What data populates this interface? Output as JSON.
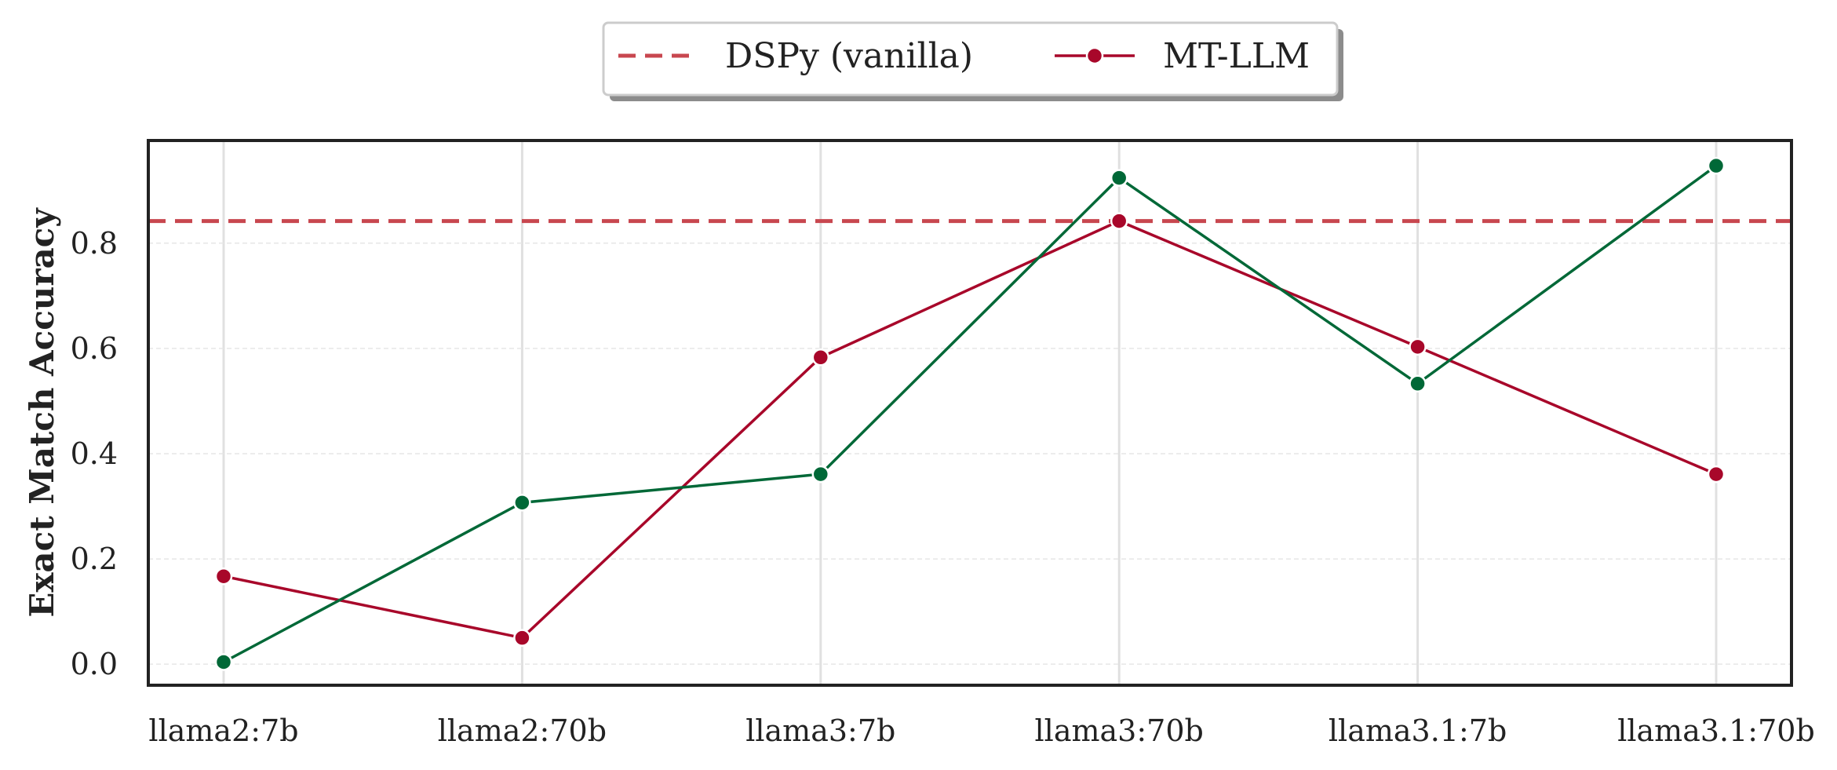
{
  "chart_data": {
    "type": "line",
    "categories": [
      "llama2:7b",
      "llama2:70b",
      "llama3:7b",
      "llama3:70b",
      "llama3.1:7b",
      "llama3.1:70b"
    ],
    "series": [
      {
        "name": "MT-LLM",
        "values": [
          0.167,
          0.05,
          0.583,
          0.842,
          0.603,
          0.361
        ],
        "color": "#a8072a",
        "marker": "circle"
      },
      {
        "name": "",
        "values": [
          0.004,
          0.307,
          0.361,
          0.924,
          0.533,
          0.947
        ],
        "color": "#006837",
        "marker": "circle"
      }
    ],
    "reference_lines": [
      {
        "name": "DSPy (vanilla)",
        "y": 0.842,
        "color": "#c8474f",
        "style": "dashed"
      }
    ],
    "xlabel": "",
    "ylabel": "Exact Match Accuracy",
    "yticks": [
      "0.0",
      "0.2",
      "0.4",
      "0.6",
      "0.8"
    ],
    "ylim": [
      -0.04,
      0.995
    ],
    "grid": true,
    "legend_position": "top-center"
  }
}
